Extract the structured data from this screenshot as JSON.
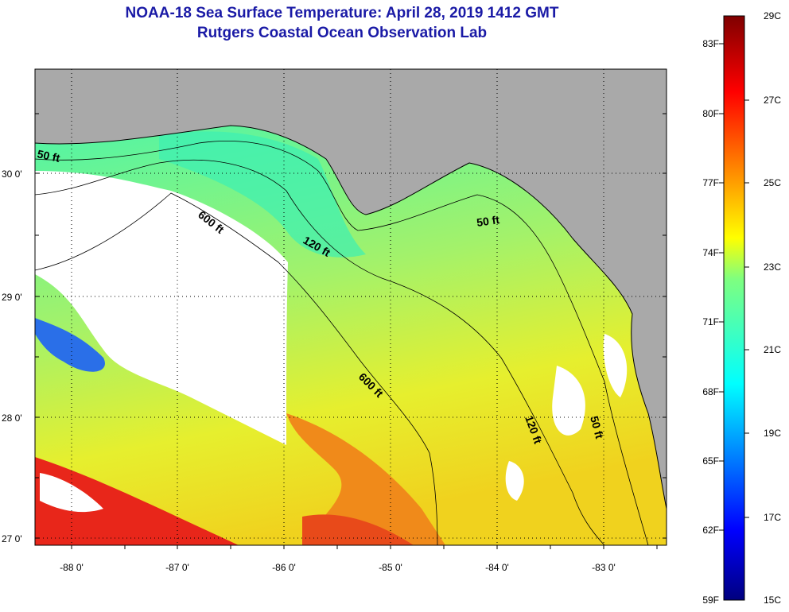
{
  "title": "NOAA-18 Sea Surface Temperature:  April 28, 2019 1412 GMT",
  "subtitle": "Rutgers Coastal Ocean Observation Lab",
  "map": {
    "lat_ticks": [
      "30 0'",
      "29 0'",
      "28 0'",
      "27 0'"
    ],
    "lon_ticks": [
      "-88 0'",
      "-87 0'",
      "-86 0'",
      "-85 0'",
      "-84 0'",
      "-83 0'"
    ],
    "contours": [
      "50 ft",
      "600 ft",
      "120 ft",
      "50 ft",
      "600 ft",
      "120 ft",
      "50 ft"
    ],
    "colors": {
      "land": "#a9a9a9",
      "cloud": "#ffffff",
      "warm": "#e8261a",
      "mid": "#e6ef2e",
      "cool": "#3cf0b4"
    }
  },
  "colorbar": {
    "fahrenheit": [
      "83F",
      "80F",
      "77F",
      "74F",
      "71F",
      "68F",
      "65F",
      "62F",
      "59F"
    ],
    "celsius": [
      "29C",
      "27C",
      "25C",
      "23C",
      "21C",
      "19C",
      "17C",
      "15C"
    ]
  }
}
